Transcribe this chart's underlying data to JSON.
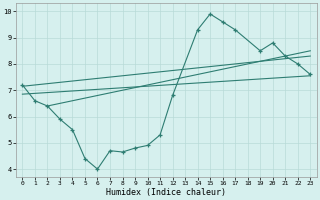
{
  "xlabel": "Humidex (Indice chaleur)",
  "ylabel": "",
  "bg_color": "#d6f0ee",
  "grid_color": "#b8dbd8",
  "line_color": "#2e7d72",
  "xlim": [
    -0.5,
    23.5
  ],
  "ylim": [
    3.7,
    10.3
  ],
  "xticks": [
    0,
    1,
    2,
    3,
    4,
    5,
    6,
    7,
    8,
    9,
    10,
    11,
    12,
    13,
    14,
    15,
    16,
    17,
    18,
    19,
    20,
    21,
    22,
    23
  ],
  "yticks": [
    4,
    5,
    6,
    7,
    8,
    9,
    10
  ],
  "curve_x": [
    0,
    1,
    2,
    3,
    4,
    5,
    6,
    7,
    8,
    9,
    10,
    11,
    12,
    14,
    15,
    16,
    17,
    19,
    20,
    21,
    22,
    23
  ],
  "curve_y": [
    7.2,
    6.6,
    6.4,
    5.9,
    5.5,
    4.4,
    4.0,
    4.7,
    4.65,
    4.8,
    4.9,
    5.3,
    6.8,
    9.3,
    9.9,
    9.6,
    9.3,
    8.5,
    8.8,
    8.3,
    8.0,
    7.6
  ],
  "line1_x": [
    0,
    23
  ],
  "line1_y": [
    7.15,
    8.3
  ],
  "line2_x": [
    0,
    23
  ],
  "line2_y": [
    6.85,
    7.55
  ],
  "line3_x": [
    2,
    23
  ],
  "line3_y": [
    6.4,
    8.5
  ]
}
